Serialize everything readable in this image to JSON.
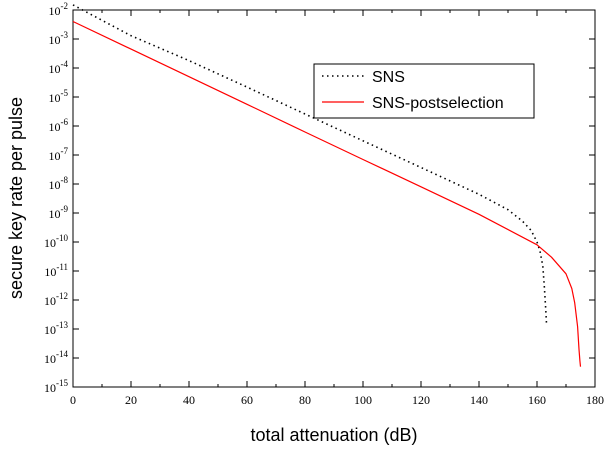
{
  "chart_data": {
    "type": "line",
    "xlabel": "total attenuation (dB)",
    "ylabel": "secure key rate per pulse",
    "xlim": [
      0,
      180
    ],
    "ylim_log10": [
      -15,
      -2
    ],
    "yscale": "log",
    "grid": false,
    "legend_position": "top-right",
    "x_ticks": [
      "0",
      "20",
      "40",
      "60",
      "80",
      "100",
      "120",
      "140",
      "160",
      "180"
    ],
    "y_ticks": [
      {
        "base": "10",
        "exp": "-15"
      },
      {
        "base": "10",
        "exp": "-14"
      },
      {
        "base": "10",
        "exp": "-13"
      },
      {
        "base": "10",
        "exp": "-12"
      },
      {
        "base": "10",
        "exp": "-11"
      },
      {
        "base": "10",
        "exp": "-10"
      },
      {
        "base": "10",
        "exp": "-9"
      },
      {
        "base": "10",
        "exp": "-8"
      },
      {
        "base": "10",
        "exp": "-7"
      },
      {
        "base": "10",
        "exp": "-6"
      },
      {
        "base": "10",
        "exp": "-5"
      },
      {
        "base": "10",
        "exp": "-4"
      },
      {
        "base": "10",
        "exp": "-3"
      },
      {
        "base": "10",
        "exp": "-2"
      }
    ],
    "series": [
      {
        "name": "SNS",
        "color": "#000000",
        "style": "dotted",
        "x": [
          0,
          20,
          40,
          60,
          80,
          100,
          120,
          140,
          150,
          155,
          158,
          160,
          161,
          162,
          162.5,
          163,
          163.3
        ],
        "y": [
          0.015,
          0.0013,
          0.00018,
          2.2e-05,
          2.6e-06,
          3.1e-07,
          3.7e-08,
          4.4e-09,
          1.3e-09,
          5.2e-10,
          2.5e-10,
          1e-10,
          5e-11,
          1.5e-11,
          3e-12,
          5e-13,
          1.3e-13
        ]
      },
      {
        "name": "SNS-postselection",
        "color": "#ff0000",
        "style": "solid",
        "x": [
          0,
          20,
          40,
          60,
          80,
          100,
          120,
          140,
          160,
          165,
          170,
          172,
          173,
          174,
          174.5,
          174.8,
          175
        ],
        "y": [
          0.004,
          0.00045,
          5e-05,
          5.6e-06,
          6.2e-07,
          7e-08,
          8e-09,
          9e-10,
          8e-11,
          3e-11,
          8e-12,
          2.5e-12,
          8e-13,
          1.2e-13,
          2e-14,
          8e-15,
          5e-15
        ]
      }
    ]
  }
}
